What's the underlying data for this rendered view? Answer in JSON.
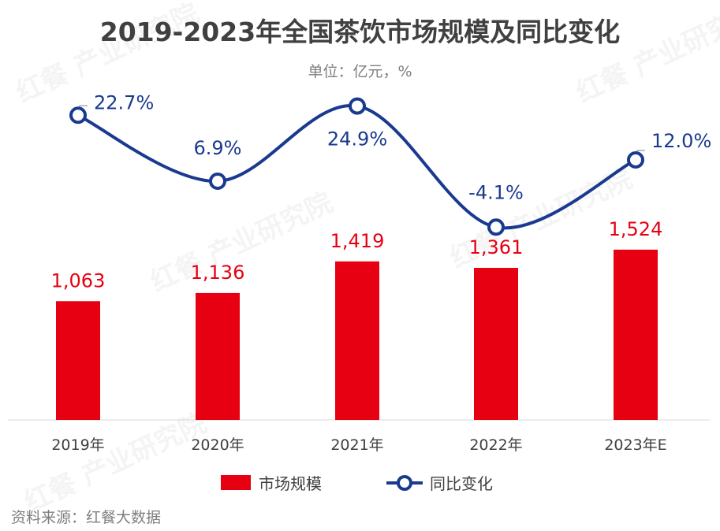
{
  "title": "2019-2023年全国茶饮市场规模及同比变化",
  "unit": "单位：亿元，%",
  "source": "资料来源：红餐大数据",
  "watermark": "红餐 产业研究院",
  "chart_data": {
    "type": "bar+line",
    "categories": [
      "2019年",
      "2020年",
      "2021年",
      "2022年",
      "2023年E"
    ],
    "series": [
      {
        "name": "市场规模",
        "type": "bar",
        "color": "#e60012",
        "values": [
          1063,
          1136,
          1419,
          1361,
          1524
        ],
        "labels": [
          "1,063",
          "1,136",
          "1,419",
          "1,361",
          "1,524"
        ]
      },
      {
        "name": "同比变化",
        "type": "line",
        "color": "#1a3a8f",
        "values": [
          22.7,
          6.9,
          24.9,
          -4.1,
          12.0
        ],
        "labels": [
          "22.7%",
          "6.9%",
          "24.9%",
          "-4.1%",
          "12.0%"
        ]
      }
    ],
    "legend": "bottom",
    "grid": false
  }
}
